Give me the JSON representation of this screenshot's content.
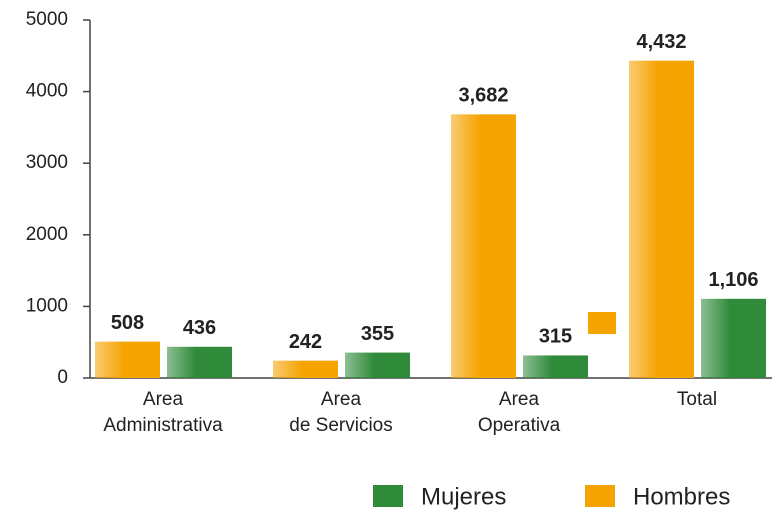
{
  "chart_data": {
    "type": "bar",
    "categories": [
      [
        "Area",
        "Administrativa"
      ],
      [
        "Area",
        "de Servicios"
      ],
      [
        "Area",
        "Operativa"
      ],
      [
        "Total"
      ]
    ],
    "series": [
      {
        "name": "Hombres",
        "color": "#f5a300",
        "values": [
          508,
          242,
          3682,
          4432
        ],
        "value_labels": [
          "508",
          "242",
          "3,682",
          "4,432"
        ]
      },
      {
        "name": "Mujeres",
        "color": "#2f8a3a",
        "values": [
          436,
          355,
          315,
          1106
        ],
        "value_labels": [
          "436",
          "355",
          "315",
          "1,106"
        ]
      }
    ],
    "ylim": [
      0,
      5000
    ],
    "yticks": [
      0,
      1000,
      2000,
      3000,
      4000,
      5000
    ],
    "grid": false
  }
}
